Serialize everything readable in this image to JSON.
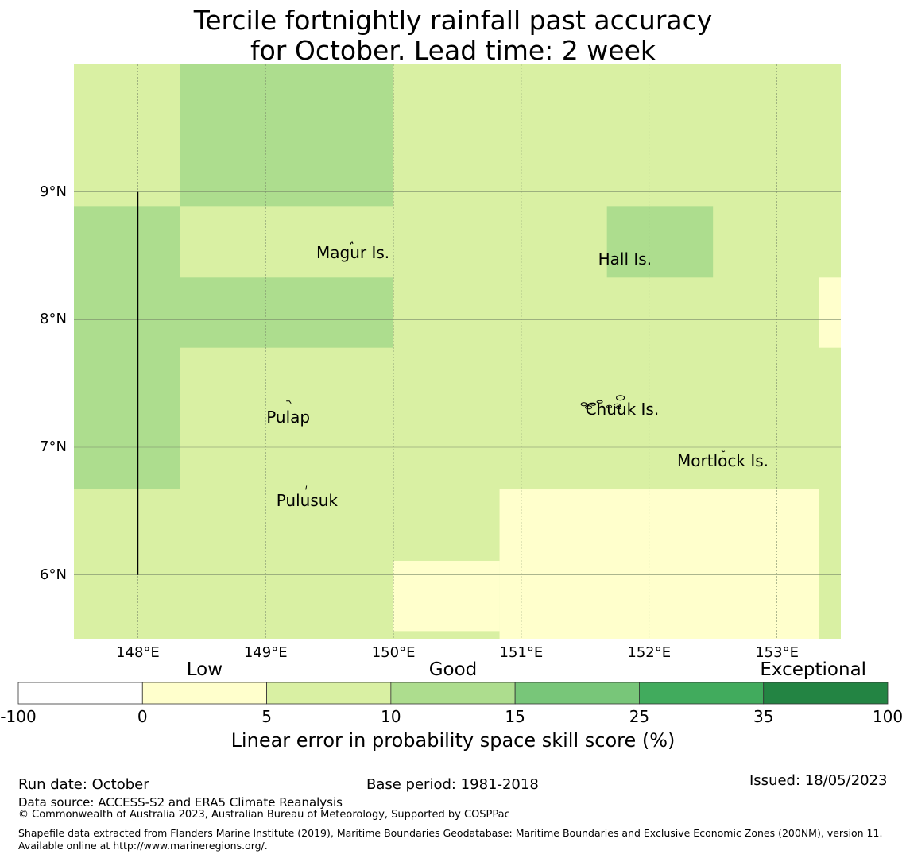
{
  "title_line1": "Tercile fortnightly rainfall past accuracy",
  "title_line2": "for October. Lead time: 2 week",
  "map": {
    "lon_range": [
      147.5,
      153.5
    ],
    "lat_range": [
      5.5,
      10.0
    ],
    "lat_ticks": [
      {
        "value": 9,
        "label": "9°N"
      },
      {
        "value": 8,
        "label": "8°N"
      },
      {
        "value": 7,
        "label": "7°N"
      },
      {
        "value": 6,
        "label": "6°N"
      }
    ],
    "lon_ticks": [
      {
        "value": 148,
        "label": "148°E"
      },
      {
        "value": 149,
        "label": "149°E"
      },
      {
        "value": 150,
        "label": "150°E"
      },
      {
        "value": 151,
        "label": "151°E"
      },
      {
        "value": 152,
        "label": "152°E"
      },
      {
        "value": 153,
        "label": "153°E"
      }
    ],
    "background_color": "#d9f0a3",
    "skill_cells": [
      {
        "lon": [
          148.33,
          150.0
        ],
        "lat": [
          8.89,
          10.0
        ],
        "color": "#addd8e"
      },
      {
        "lon": [
          147.5,
          148.33
        ],
        "lat": [
          6.67,
          8.89
        ],
        "color": "#addd8e"
      },
      {
        "lon": [
          148.33,
          150.0
        ],
        "lat": [
          7.78,
          8.33
        ],
        "color": "#addd8e"
      },
      {
        "lon": [
          151.67,
          152.5
        ],
        "lat": [
          8.33,
          8.89
        ],
        "color": "#addd8e"
      },
      {
        "lon": [
          153.33,
          153.5
        ],
        "lat": [
          7.78,
          8.33
        ],
        "color": "#ffffcc"
      },
      {
        "lon": [
          150.83,
          153.33
        ],
        "lat": [
          5.5,
          6.67
        ],
        "color": "#ffffcc"
      },
      {
        "lon": [
          150.0,
          150.83
        ],
        "lat": [
          5.56,
          6.11
        ],
        "color": "#ffffcc"
      },
      {
        "lon": [
          153.33,
          153.5
        ],
        "lat": [
          5.5,
          5.56
        ],
        "color": "#d9f0a3"
      }
    ],
    "boundary_line": {
      "lon": 148.0,
      "lat_from": 6.0,
      "lat_to": 9.0
    },
    "places": [
      {
        "name": "Magur Is.",
        "lon": 149.67,
        "lat": 8.6
      },
      {
        "name": "Hall Is.",
        "lon": 151.85,
        "lat": 8.55
      },
      {
        "name": "Pulap",
        "lon": 149.18,
        "lat": 7.35
      },
      {
        "name": "Chuuk Is.",
        "lon": 151.8,
        "lat": 7.4
      },
      {
        "name": "Mortlock Is.",
        "lon": 152.58,
        "lat": 6.97
      },
      {
        "name": "Pulusuk",
        "lon": 149.32,
        "lat": 6.68
      }
    ]
  },
  "colorbar": {
    "categories": [
      {
        "label": "Low",
        "pos": 1.5
      },
      {
        "label": "Good",
        "pos": 3.5
      },
      {
        "label": "Exceptional",
        "pos": 6.4
      }
    ],
    "ticks": [
      "-100",
      "0",
      "5",
      "10",
      "15",
      "25",
      "35",
      "100"
    ],
    "colors": [
      "#ffffff",
      "#ffffcc",
      "#d9f0a3",
      "#addd8e",
      "#78c679",
      "#41ab5d",
      "#238443"
    ],
    "label": "Linear error in probability space skill score (%)"
  },
  "footer": {
    "run_date": "Run date: October",
    "base_period": "Base period: 1981-2018",
    "issued": "Issued: 18/05/2023",
    "data_source": "Data source: ACCESS-S2 and ERA5 Climate Reanalysis",
    "copyright": "© Commonwealth of Australia 2023, Australian Bureau of Meteorology, Supported by COSPPac",
    "shapefile": "Shapefile data extracted from Flanders Marine Institute (2019), Maritime Boundaries Geodatabase: Maritime Boundaries and Exclusive Economic Zones (200NM), version 11. Available online at http://www.marineregions.org/."
  }
}
